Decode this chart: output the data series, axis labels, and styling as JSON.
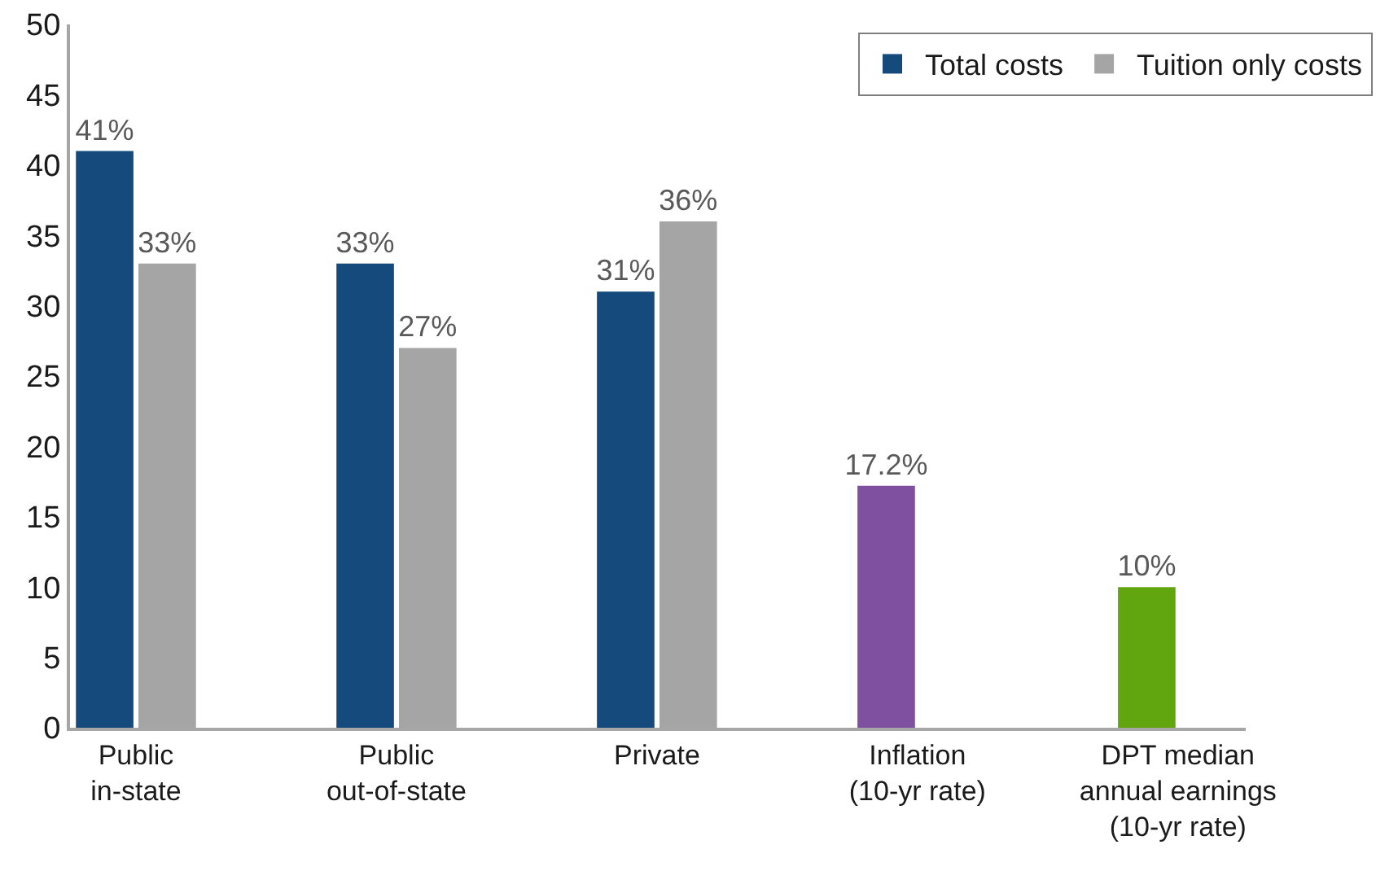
{
  "chart_data": {
    "type": "bar",
    "categories": [
      "Public\nin-state",
      "Public\nout-of-state",
      "Private",
      "Inflation\n(10-yr rate)",
      "DPT median\nannual earnings\n(10-yr rate)"
    ],
    "series": [
      {
        "name": "Total costs",
        "colors": [
          "#144a7c",
          "#144a7c",
          "#144a7c",
          "#7f509f",
          "#62a60f"
        ],
        "values": [
          41,
          33,
          31,
          17.2,
          10
        ],
        "value_labels": [
          "41%",
          "33%",
          "31%",
          "17.2%",
          "10%"
        ]
      },
      {
        "name": "Tuition only costs",
        "color": "#a5a5a5",
        "values": [
          33,
          27,
          36,
          null,
          null
        ],
        "value_labels": [
          "33%",
          "27%",
          "36%",
          null,
          null
        ]
      }
    ],
    "ylim": [
      0,
      50
    ],
    "yticks": [
      0,
      5,
      10,
      15,
      20,
      25,
      30,
      35,
      40,
      45,
      50
    ],
    "grid": false,
    "legend": "top right"
  }
}
